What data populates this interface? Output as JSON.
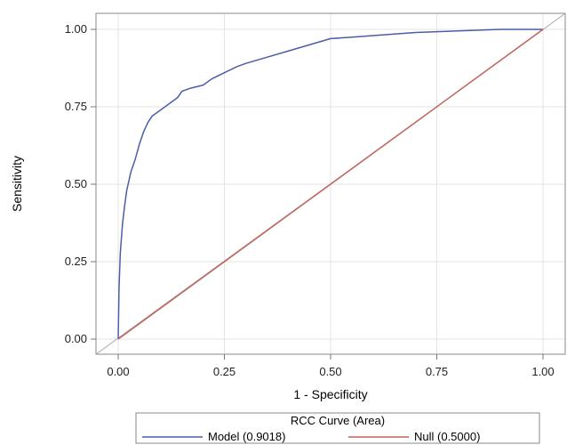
{
  "chart_data": {
    "type": "line",
    "title": "",
    "xlabel": "1 - Specificity",
    "ylabel": "Sensitivity",
    "xlim": [
      0,
      1
    ],
    "ylim": [
      0,
      1
    ],
    "xticks": [
      "0.00",
      "0.25",
      "0.50",
      "0.75",
      "1.00"
    ],
    "yticks": [
      "0.00",
      "0.25",
      "0.50",
      "0.75",
      "1.00"
    ],
    "grid": true,
    "legend": {
      "title": "RCC Curve (Area)",
      "placement": "bottom",
      "entries": [
        "Model  (0.9018)",
        "Null  (0.5000)"
      ]
    },
    "series": [
      {
        "name": "Model  (0.9018)",
        "color": "#4a5ea8",
        "x": [
          0,
          0.002,
          0.005,
          0.01,
          0.015,
          0.02,
          0.03,
          0.04,
          0.05,
          0.06,
          0.07,
          0.08,
          0.09,
          0.1,
          0.12,
          0.14,
          0.15,
          0.17,
          0.2,
          0.22,
          0.25,
          0.28,
          0.3,
          0.35,
          0.4,
          0.45,
          0.5,
          0.55,
          0.6,
          0.7,
          0.8,
          0.9,
          1.0
        ],
        "y": [
          0,
          0.17,
          0.28,
          0.37,
          0.43,
          0.48,
          0.54,
          0.58,
          0.63,
          0.67,
          0.7,
          0.72,
          0.73,
          0.74,
          0.76,
          0.78,
          0.8,
          0.81,
          0.82,
          0.84,
          0.86,
          0.88,
          0.89,
          0.91,
          0.93,
          0.95,
          0.97,
          0.975,
          0.98,
          0.99,
          0.995,
          1.0,
          1.0
        ]
      },
      {
        "name": "Null  (0.5000)",
        "color": "#c0655a",
        "x": [
          0,
          1
        ],
        "y": [
          0,
          1
        ]
      }
    ]
  }
}
